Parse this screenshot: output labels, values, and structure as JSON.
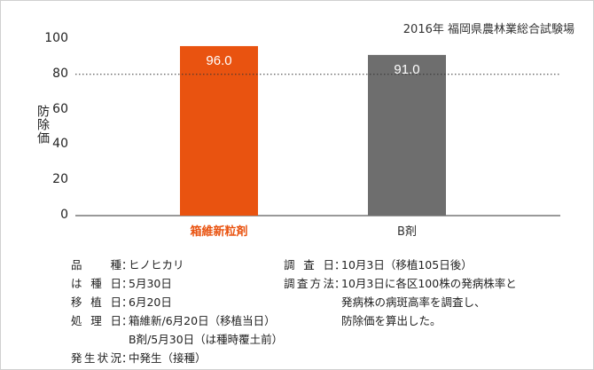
{
  "chart_data": {
    "type": "bar",
    "title": "",
    "source_note": "2016年 福岡県農林業総合試験場",
    "ylabel": "防除価",
    "xlabel": "",
    "ylim": [
      0,
      100
    ],
    "yticks": [
      "0",
      "20",
      "40",
      "60",
      "80",
      "100"
    ],
    "reference_line": 80,
    "categories": [
      "箱維新粒剤",
      "B剤"
    ],
    "values": [
      96.0,
      91.0
    ],
    "value_labels": [
      "96.0",
      "91.0"
    ],
    "colors": [
      "#e95310",
      "#6e6e6e"
    ]
  },
  "notes": {
    "left": [
      {
        "label": "品種",
        "value": "ヒノヒカリ"
      },
      {
        "label": "は種日",
        "value": "5月30日"
      },
      {
        "label": "移植日",
        "value": "6月20日"
      },
      {
        "label": "処理日",
        "value": "箱維新/6月20日（移植当日）"
      },
      {
        "label": "",
        "value": "B剤/5月30日（は種時覆土前）"
      },
      {
        "label": "発生状況",
        "value": "中発生（接種）"
      }
    ],
    "right": [
      {
        "label": "調査日",
        "value": "10月3日（移植105日後）"
      },
      {
        "label": "調査方法",
        "value": "10月3日に各区100株の発病株率と"
      },
      {
        "label": "",
        "value": "発病株の病斑高率を調査し、"
      },
      {
        "label": "",
        "value": "防除価を算出した。"
      }
    ]
  }
}
